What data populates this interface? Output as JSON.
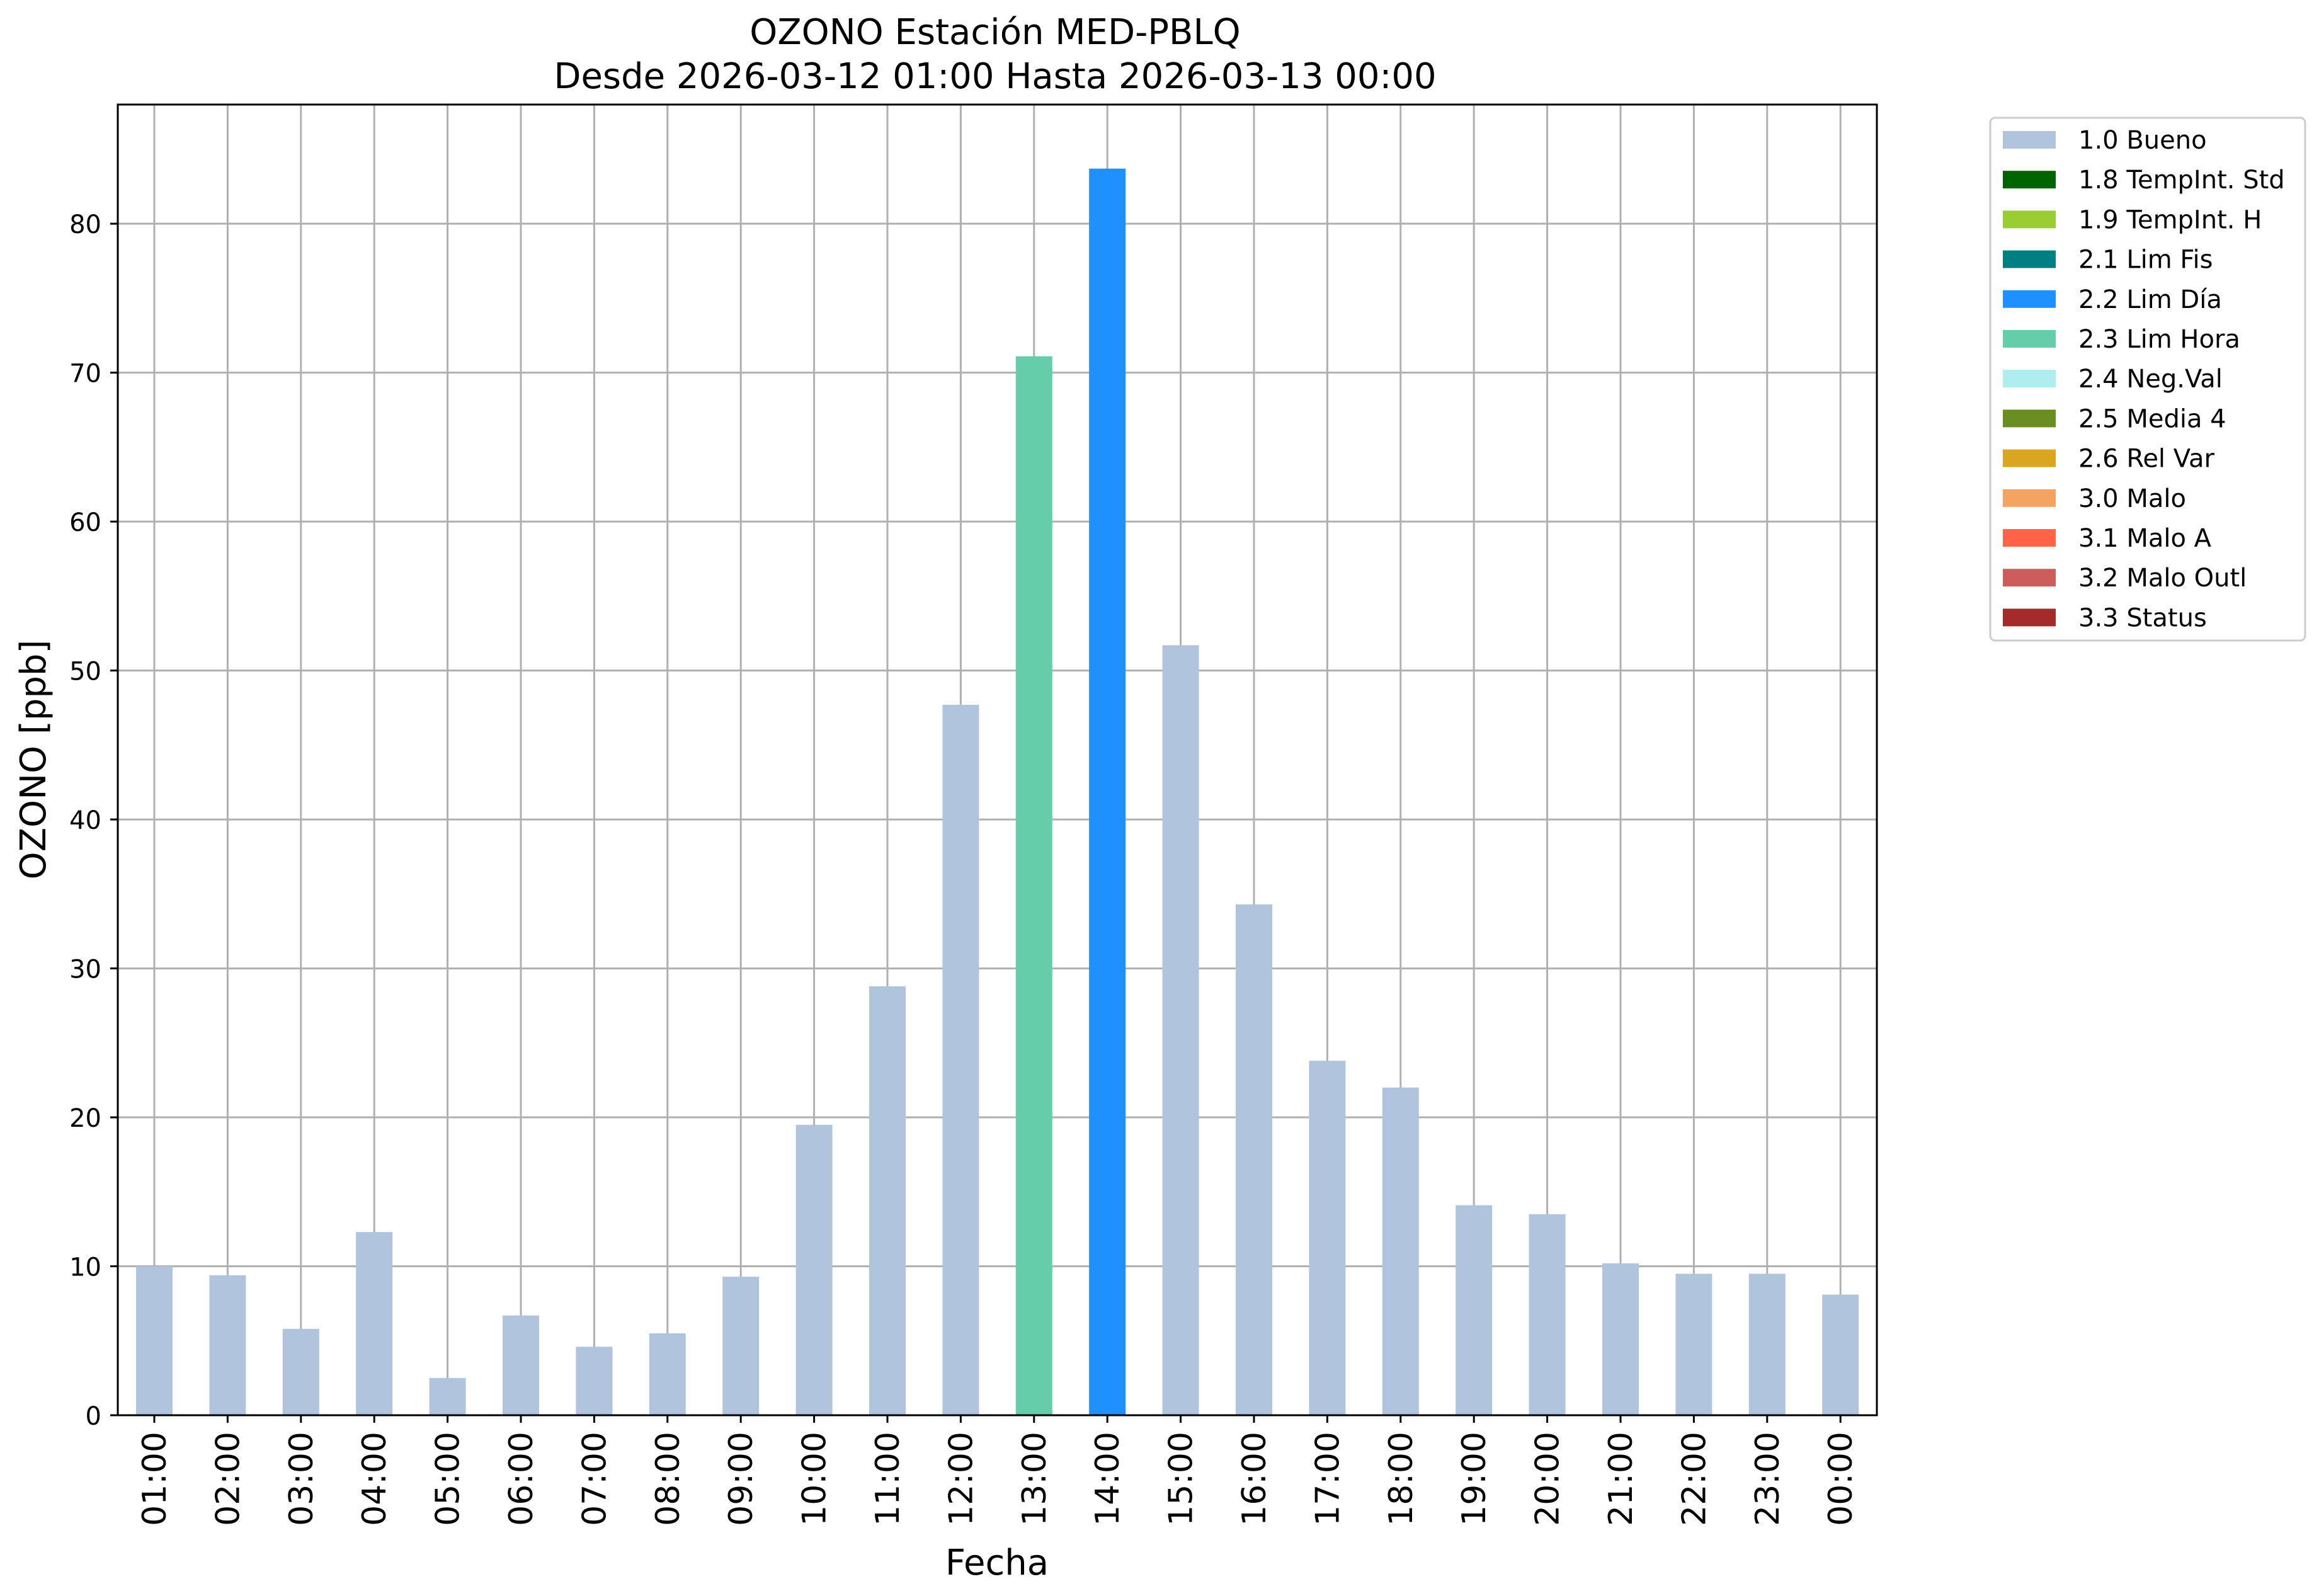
{
  "chart_data": {
    "type": "bar",
    "title_line1": "OZONO Estación MED-PBLQ",
    "title_line2": "Desde 2026-03-12 01:00 Hasta 2026-03-13 00:00",
    "xlabel": "Fecha",
    "ylabel": "OZONO [ppb]",
    "ylim": [
      0,
      88
    ],
    "yticks": [
      0,
      10,
      20,
      30,
      40,
      50,
      60,
      70,
      80
    ],
    "grid": true,
    "legend_position": "outside-top-right",
    "categories": [
      "01:00",
      "02:00",
      "03:00",
      "04:00",
      "05:00",
      "06:00",
      "07:00",
      "08:00",
      "09:00",
      "10:00",
      "11:00",
      "12:00",
      "13:00",
      "14:00",
      "15:00",
      "16:00",
      "17:00",
      "18:00",
      "19:00",
      "20:00",
      "21:00",
      "22:00",
      "23:00",
      "00:00"
    ],
    "values": [
      10.0,
      9.4,
      5.8,
      12.3,
      2.5,
      6.7,
      4.6,
      5.5,
      9.3,
      19.5,
      28.8,
      47.7,
      71.1,
      83.7,
      51.7,
      34.3,
      23.8,
      22.0,
      14.1,
      13.5,
      10.2,
      9.5,
      9.5,
      8.1
    ],
    "flags": [
      "1.0",
      "1.0",
      "1.0",
      "1.0",
      "1.0",
      "1.0",
      "1.0",
      "1.0",
      "1.0",
      "1.0",
      "1.0",
      "1.0",
      "2.3",
      "2.2",
      "1.0",
      "1.0",
      "1.0",
      "1.0",
      "1.0",
      "1.0",
      "1.0",
      "1.0",
      "1.0",
      "1.0"
    ],
    "legend": [
      {
        "code": "1.0",
        "label": "1.0 Bueno",
        "color": "#b0c4de"
      },
      {
        "code": "1.8",
        "label": "1.8 TempInt. Std",
        "color": "#006400"
      },
      {
        "code": "1.9",
        "label": "1.9 TempInt. H",
        "color": "#9acd32"
      },
      {
        "code": "2.1",
        "label": "2.1 Lim Fis",
        "color": "#008080"
      },
      {
        "code": "2.2",
        "label": "2.2 Lim Día",
        "color": "#1e90ff"
      },
      {
        "code": "2.3",
        "label": "2.3 Lim Hora",
        "color": "#66cdaa"
      },
      {
        "code": "2.4",
        "label": "2.4 Neg.Val",
        "color": "#afeeee"
      },
      {
        "code": "2.5",
        "label": "2.5 Media 4",
        "color": "#6b8e23"
      },
      {
        "code": "2.6",
        "label": "2.6 Rel Var",
        "color": "#daa520"
      },
      {
        "code": "3.0",
        "label": "3.0 Malo",
        "color": "#f4a460"
      },
      {
        "code": "3.1",
        "label": "3.1 Malo A",
        "color": "#ff6347"
      },
      {
        "code": "3.2",
        "label": "3.2 Malo Outl",
        "color": "#cd5c5c"
      },
      {
        "code": "3.3",
        "label": "3.3 Status",
        "color": "#a52a2a"
      }
    ]
  }
}
